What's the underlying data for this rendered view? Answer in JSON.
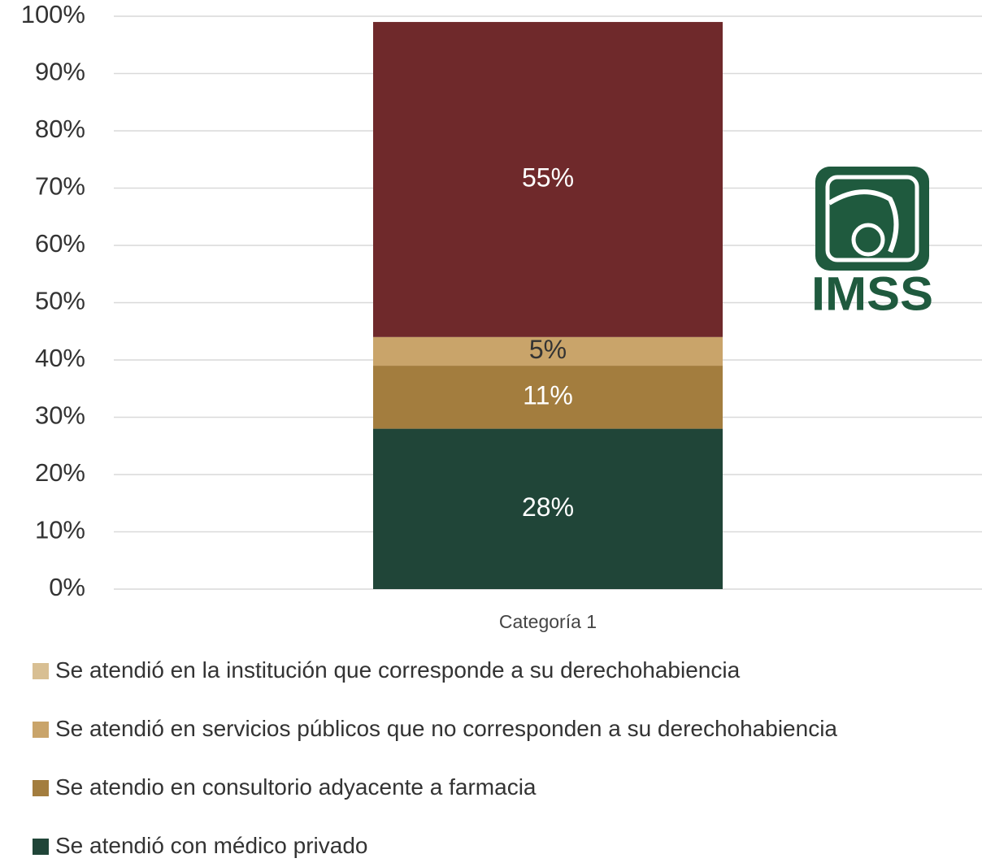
{
  "chart_data": {
    "type": "stacked_bar",
    "categories": [
      "Categoría 1"
    ],
    "series": [
      {
        "name": "Se atendió en la institución que corresponde a su derechohabiencia",
        "color": "#6f292b",
        "legend_color": "#d8bf93",
        "label_color": "#ffffff",
        "values": [
          55
        ],
        "value_labels": [
          "55%"
        ]
      },
      {
        "name": "Se atendió en servicios públicos que no corresponden a su derechohabiencia",
        "color": "#c9a46a",
        "legend_color": "#c9a46a",
        "label_color": "#333333",
        "values": [
          5
        ],
        "value_labels": [
          "5%"
        ]
      },
      {
        "name": "Se atendio en consultorio adyacente a farmacia",
        "color": "#a37d3e",
        "legend_color": "#a37d3e",
        "label_color": "#ffffff",
        "values": [
          11
        ],
        "value_labels": [
          "11%"
        ]
      },
      {
        "name": "Se atendió con médico privado",
        "color": "#204538",
        "legend_color": "#204538",
        "label_color": "#ffffff",
        "values": [
          28
        ],
        "value_labels": [
          "28%"
        ]
      }
    ],
    "ylim": [
      0,
      100
    ],
    "yticks": [
      {
        "value": 0,
        "label": "0%"
      },
      {
        "value": 10,
        "label": "10%"
      },
      {
        "value": 20,
        "label": "20%"
      },
      {
        "value": 30,
        "label": "30%"
      },
      {
        "value": 40,
        "label": "40%"
      },
      {
        "value": 50,
        "label": "50%"
      },
      {
        "value": 60,
        "label": "60%"
      },
      {
        "value": 70,
        "label": "70%"
      },
      {
        "value": 80,
        "label": "80%"
      },
      {
        "value": 90,
        "label": "90%"
      },
      {
        "value": 100,
        "label": "100%"
      }
    ],
    "grid": true,
    "logo_text": "IMSS"
  }
}
